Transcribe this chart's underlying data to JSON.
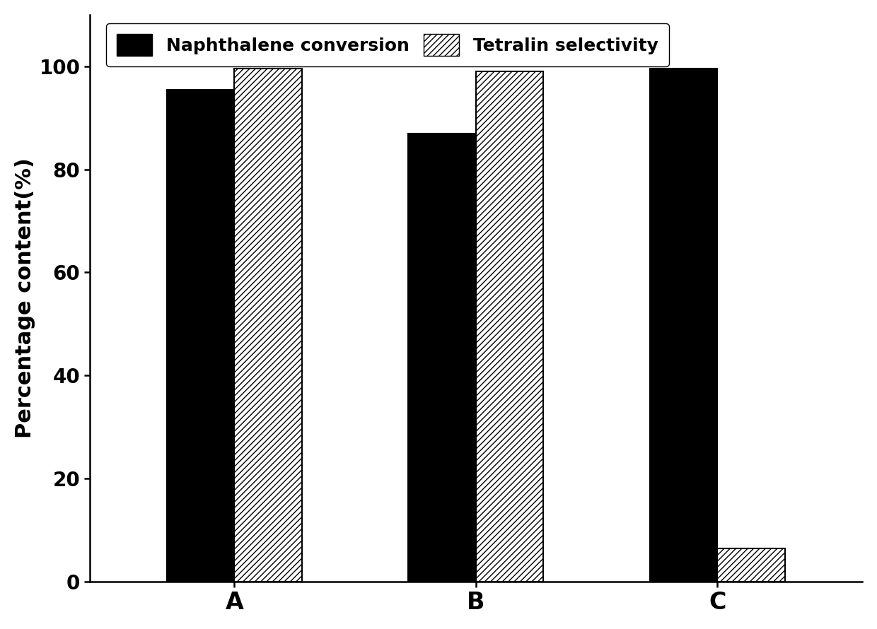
{
  "categories": [
    "A",
    "B",
    "C"
  ],
  "naphthalene_conversion": [
    95.5,
    87.0,
    99.5
  ],
  "tetralin_selectivity": [
    99.5,
    99.0,
    6.5
  ],
  "bar_width": 0.28,
  "ylabel": "Percentage content(%)",
  "ylim": [
    0,
    110
  ],
  "yticks": [
    0,
    20,
    40,
    60,
    80,
    100
  ],
  "legend_naphthalene": "Naphthalene conversion",
  "legend_tetralin": "Tetralin selectivity",
  "solid_color": "#000000",
  "hatch_facecolor": "#ffffff",
  "hatch_pattern": "////",
  "hatch_edgecolor": "#000000",
  "background_color": "#ffffff",
  "label_fontsize": 22,
  "tick_fontsize": 20,
  "legend_fontsize": 18,
  "axis_linewidth": 1.8,
  "xlabel_fontsize": 24
}
